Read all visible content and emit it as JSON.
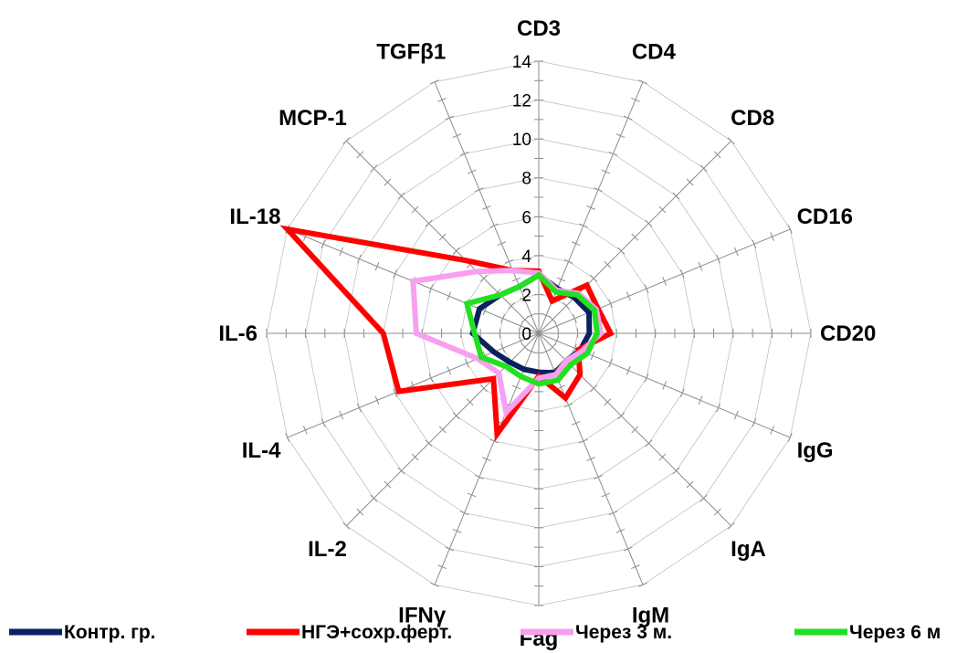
{
  "chart_data": {
    "type": "radar",
    "axes": [
      "CD3",
      "CD4",
      "CD8",
      "CD16",
      "CD20",
      "IgG",
      "IgA",
      "IgM",
      "Fag",
      "IFNγ",
      "IL-2",
      "IL-4",
      "IL-6",
      "IL-18",
      "MCP-1",
      "TGFβ1"
    ],
    "range": [
      0,
      14
    ],
    "ticks": [
      0,
      2,
      4,
      6,
      8,
      10,
      12,
      14
    ],
    "tick_labels": [
      "0",
      "2",
      "4",
      "6",
      "8",
      "10",
      "12",
      "14"
    ],
    "series": [
      {
        "name": "Контр. гр.",
        "color": "#0a2060",
        "values": [
          3.0,
          2.5,
          2.6,
          2.8,
          2.6,
          2.3,
          2.0,
          2.2,
          2.0,
          2.0,
          2.1,
          2.5,
          3.4,
          3.3,
          2.8,
          2.6
        ]
      },
      {
        "name": "НГЭ+сохр.ферт.",
        "color": "#ff0000",
        "values": [
          3.2,
          1.8,
          3.5,
          3.3,
          3.7,
          2.2,
          3.0,
          3.6,
          2.2,
          5.6,
          3.3,
          7.8,
          8.0,
          14.0,
          5.3,
          3.5
        ]
      },
      {
        "name": "Через 3 м.",
        "color": "#f7a0f0",
        "values": [
          3.1,
          2.4,
          2.9,
          3.2,
          3.2,
          2.4,
          2.0,
          2.3,
          2.3,
          4.4,
          2.9,
          3.4,
          6.3,
          7.0,
          4.5,
          3.5
        ]
      },
      {
        "name": "Через 6 м",
        "color": "#22e022",
        "values": [
          3.0,
          2.3,
          2.8,
          3.1,
          3.0,
          2.7,
          2.3,
          2.6,
          2.6,
          2.4,
          2.4,
          3.2,
          3.3,
          4.0,
          2.8,
          2.6
        ]
      }
    ],
    "legend_position": "bottom"
  }
}
